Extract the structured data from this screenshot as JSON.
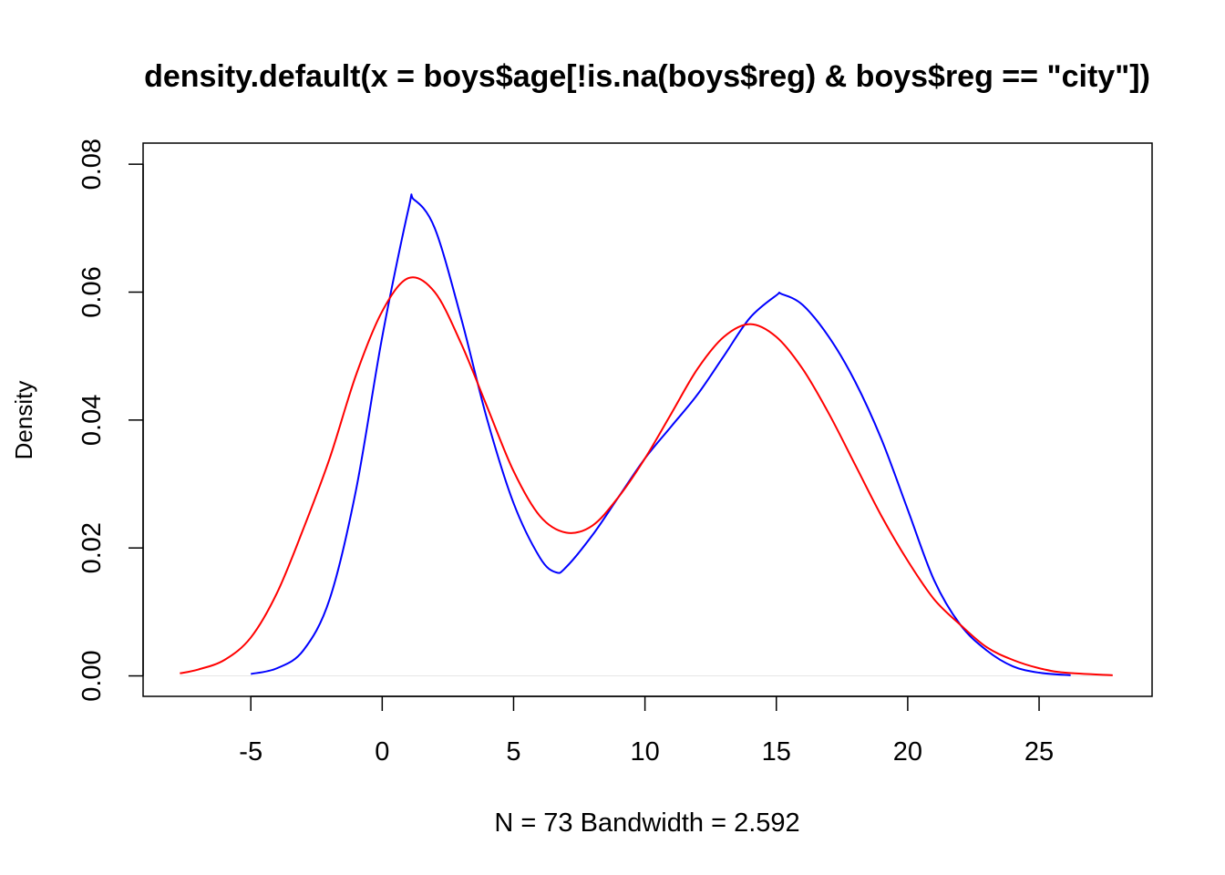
{
  "chart_data": {
    "type": "line",
    "title": "density.default(x = boys$age[!is.na(boys$reg) & boys$reg == \"city\"])",
    "xlabel": "N = 73   Bandwidth = 2.592",
    "ylabel": "Density",
    "xlim": [
      -9.1,
      29.3
    ],
    "ylim": [
      -0.0032,
      0.0833
    ],
    "xticks": [
      -5,
      0,
      5,
      10,
      15,
      20,
      25
    ],
    "xtick_labels": [
      "-5",
      "0",
      "5",
      "10",
      "15",
      "20",
      "25"
    ],
    "yticks": [
      0.0,
      0.02,
      0.04,
      0.06,
      0.08
    ],
    "ytick_labels": [
      "0.00",
      "0.02",
      "0.04",
      "0.06",
      "0.08"
    ],
    "grid": false,
    "series": [
      {
        "color": "#0000ff",
        "x": [
          -5,
          -4,
          -3,
          -2,
          -1,
          0,
          1,
          1.2,
          2,
          3,
          4,
          5,
          6,
          6.6,
          7,
          8,
          9,
          10,
          11,
          12,
          13,
          14,
          15,
          15.2,
          16,
          17,
          18,
          19,
          20,
          21,
          22,
          23,
          24,
          25,
          26.2
        ],
        "y": [
          0.0003,
          0.0012,
          0.004,
          0.012,
          0.029,
          0.053,
          0.073,
          0.0745,
          0.07,
          0.056,
          0.04,
          0.027,
          0.0185,
          0.0162,
          0.017,
          0.022,
          0.028,
          0.034,
          0.039,
          0.044,
          0.05,
          0.056,
          0.0595,
          0.0597,
          0.058,
          0.053,
          0.046,
          0.037,
          0.026,
          0.015,
          0.008,
          0.004,
          0.0015,
          0.0005,
          0.0001
        ]
      },
      {
        "color": "#ff0000",
        "x": [
          -7.7,
          -7,
          -6,
          -5,
          -4,
          -3,
          -2,
          -1,
          0,
          1,
          2,
          3,
          4,
          5,
          6,
          7,
          8,
          9,
          10,
          11,
          12,
          13,
          14,
          15,
          16,
          17,
          18,
          19,
          20,
          21,
          22,
          23,
          24,
          25,
          26,
          27.8
        ],
        "y": [
          0.0004,
          0.001,
          0.0025,
          0.006,
          0.013,
          0.023,
          0.034,
          0.047,
          0.057,
          0.0622,
          0.06,
          0.052,
          0.042,
          0.032,
          0.025,
          0.0224,
          0.0235,
          0.028,
          0.034,
          0.041,
          0.048,
          0.053,
          0.055,
          0.053,
          0.048,
          0.041,
          0.033,
          0.025,
          0.018,
          0.012,
          0.008,
          0.0045,
          0.0025,
          0.0012,
          0.0005,
          0.0001
        ]
      }
    ]
  }
}
